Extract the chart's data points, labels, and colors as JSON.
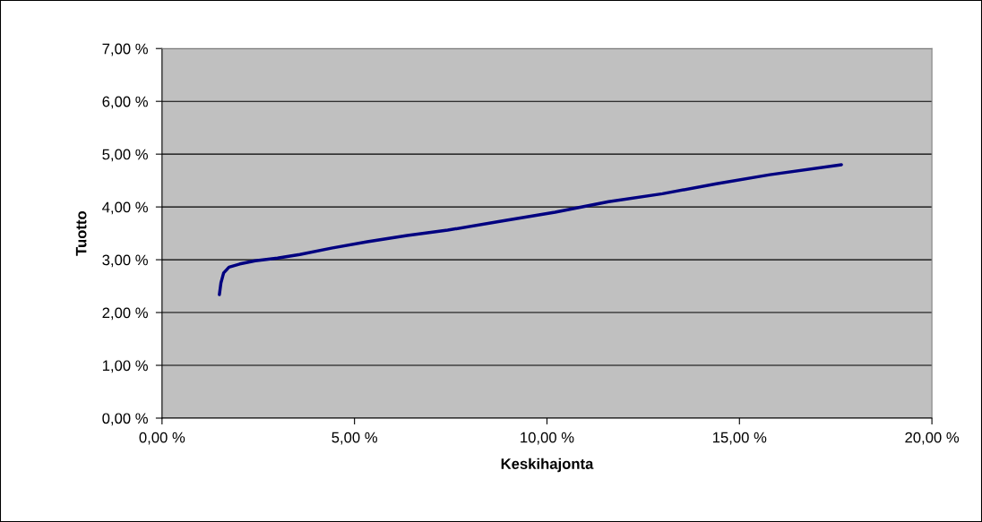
{
  "chart_data": {
    "type": "line",
    "xlabel": "Keskihajonta",
    "ylabel": "Tuotto",
    "series": [
      {
        "color": "#000080",
        "x": [
          1.49,
          1.53,
          1.6,
          1.74,
          2.02,
          2.42,
          3.0,
          3.58,
          4.4,
          5.33,
          6.37,
          7.42,
          8.81,
          10.21,
          11.6,
          13.0,
          14.4,
          15.79,
          17.65
        ],
        "values": [
          2.34,
          2.56,
          2.75,
          2.86,
          2.92,
          2.98,
          3.03,
          3.1,
          3.22,
          3.34,
          3.46,
          3.56,
          3.73,
          3.9,
          4.1,
          4.25,
          4.44,
          4.61,
          4.8
        ]
      }
    ],
    "xlim": [
      0,
      20
    ],
    "xticks": [
      {
        "value": 0,
        "label": "0,00 %"
      },
      {
        "value": 5,
        "label": "5,00 %"
      },
      {
        "value": 10,
        "label": "10,00 %"
      },
      {
        "value": 15,
        "label": "15,00 %"
      },
      {
        "value": 20,
        "label": "20,00 %"
      }
    ],
    "ylim": [
      0,
      7
    ],
    "yticks": [
      {
        "value": 0,
        "label": "0,00 %"
      },
      {
        "value": 1,
        "label": "1,00 %"
      },
      {
        "value": 2,
        "label": "2,00 %"
      },
      {
        "value": 3,
        "label": "3,00 %"
      },
      {
        "value": 4,
        "label": "4,00 %"
      },
      {
        "value": 5,
        "label": "5,00 %"
      },
      {
        "value": 6,
        "label": "6,00 %"
      },
      {
        "value": 7,
        "label": "7,00 %"
      }
    ],
    "grid": "y",
    "legend": false,
    "marker": "none",
    "line_style": "solid"
  }
}
